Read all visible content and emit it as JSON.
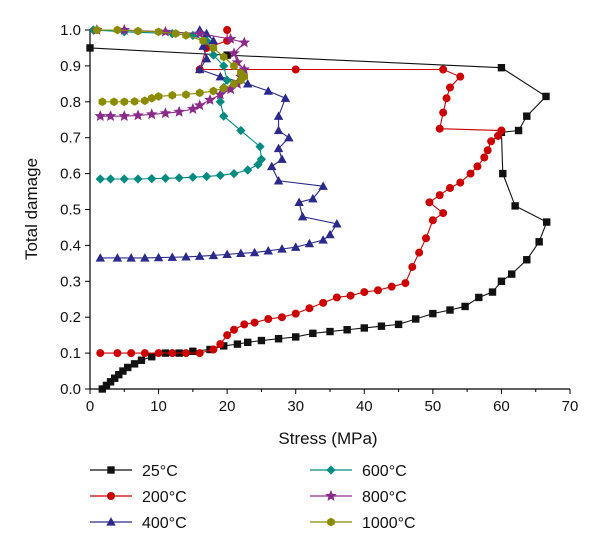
{
  "chart_data": {
    "type": "line",
    "xlabel": "Stress (MPa)",
    "ylabel": "Total damage",
    "xlim": [
      0,
      70
    ],
    "ylim": [
      0,
      1.0
    ],
    "x_ticks": [
      "0",
      "10",
      "20",
      "30",
      "40",
      "50",
      "60",
      "70"
    ],
    "y_ticks": [
      "0.0",
      "0.1",
      "0.2",
      "0.3",
      "0.4",
      "0.5",
      "0.6",
      "0.7",
      "0.8",
      "0.9",
      "1.0"
    ],
    "grid": false,
    "legend_position": "bottom",
    "series": [
      {
        "name": "25°C",
        "color": "#111111",
        "marker": "square",
        "points": [
          [
            1.8,
            0.0
          ],
          [
            2.4,
            0.01
          ],
          [
            3.0,
            0.02
          ],
          [
            3.6,
            0.03
          ],
          [
            4.2,
            0.04
          ],
          [
            4.8,
            0.05
          ],
          [
            5.5,
            0.06
          ],
          [
            6.5,
            0.07
          ],
          [
            7.5,
            0.08
          ],
          [
            9.0,
            0.09
          ],
          [
            11.0,
            0.1
          ],
          [
            13.0,
            0.1
          ],
          [
            15.0,
            0.105
          ],
          [
            17.5,
            0.11
          ],
          [
            19.5,
            0.12
          ],
          [
            21.5,
            0.125
          ],
          [
            23.0,
            0.13
          ],
          [
            25.0,
            0.135
          ],
          [
            27.5,
            0.14
          ],
          [
            30.0,
            0.145
          ],
          [
            32.5,
            0.155
          ],
          [
            35.0,
            0.16
          ],
          [
            37.5,
            0.165
          ],
          [
            40.0,
            0.17
          ],
          [
            42.5,
            0.175
          ],
          [
            45.0,
            0.18
          ],
          [
            47.5,
            0.195
          ],
          [
            50.0,
            0.21
          ],
          [
            52.5,
            0.22
          ],
          [
            54.7,
            0.23
          ],
          [
            56.7,
            0.255
          ],
          [
            58.7,
            0.27
          ],
          [
            60.0,
            0.3
          ],
          [
            61.5,
            0.32
          ],
          [
            63.7,
            0.36
          ],
          [
            65.5,
            0.41
          ],
          [
            66.6,
            0.465
          ],
          [
            62.0,
            0.51
          ],
          [
            60.2,
            0.6
          ],
          [
            60.0,
            0.715
          ],
          [
            62.5,
            0.72
          ],
          [
            63.7,
            0.76
          ],
          [
            66.5,
            0.815
          ],
          [
            60.0,
            0.895
          ],
          [
            20.0,
            0.93
          ],
          [
            0.0,
            0.95
          ]
        ]
      },
      {
        "name": "200°C",
        "color": "#cc0000",
        "marker": "circle",
        "points": [
          [
            1.5,
            0.1
          ],
          [
            4.0,
            0.1
          ],
          [
            6.0,
            0.1
          ],
          [
            8.0,
            0.1
          ],
          [
            10.0,
            0.1
          ],
          [
            12.0,
            0.1
          ],
          [
            14.0,
            0.1
          ],
          [
            16.0,
            0.1
          ],
          [
            18.0,
            0.11
          ],
          [
            19.0,
            0.125
          ],
          [
            20.0,
            0.15
          ],
          [
            21.0,
            0.165
          ],
          [
            22.5,
            0.18
          ],
          [
            24.0,
            0.185
          ],
          [
            26.0,
            0.195
          ],
          [
            28.0,
            0.2
          ],
          [
            30.0,
            0.21
          ],
          [
            32.0,
            0.225
          ],
          [
            34.0,
            0.24
          ],
          [
            36.0,
            0.255
          ],
          [
            38.0,
            0.26
          ],
          [
            40.0,
            0.27
          ],
          [
            42.0,
            0.275
          ],
          [
            44.0,
            0.285
          ],
          [
            46.0,
            0.295
          ],
          [
            47.0,
            0.34
          ],
          [
            48.0,
            0.38
          ],
          [
            49.0,
            0.42
          ],
          [
            50.0,
            0.47
          ],
          [
            51.5,
            0.49
          ],
          [
            49.5,
            0.52
          ],
          [
            51.0,
            0.54
          ],
          [
            52.5,
            0.56
          ],
          [
            54.0,
            0.575
          ],
          [
            55.5,
            0.6
          ],
          [
            56.5,
            0.62
          ],
          [
            57.5,
            0.645
          ],
          [
            58.0,
            0.665
          ],
          [
            58.5,
            0.69
          ],
          [
            59.5,
            0.705
          ],
          [
            60.0,
            0.72
          ],
          [
            51.0,
            0.725
          ],
          [
            51.5,
            0.77
          ],
          [
            52.0,
            0.81
          ],
          [
            52.5,
            0.84
          ],
          [
            54.0,
            0.87
          ],
          [
            51.5,
            0.89
          ],
          [
            30.0,
            0.89
          ],
          [
            16.0,
            0.89
          ],
          [
            17.0,
            0.95
          ],
          [
            20.0,
            0.97
          ],
          [
            20.0,
            1.0
          ]
        ]
      },
      {
        "name": "400°C",
        "color": "#2a2a8c",
        "marker": "triangle",
        "points": [
          [
            1.5,
            0.365
          ],
          [
            4.0,
            0.365
          ],
          [
            6.0,
            0.365
          ],
          [
            8.0,
            0.365
          ],
          [
            10.0,
            0.366
          ],
          [
            12.0,
            0.367
          ],
          [
            14.0,
            0.368
          ],
          [
            16.0,
            0.37
          ],
          [
            18.0,
            0.372
          ],
          [
            20.0,
            0.375
          ],
          [
            22.0,
            0.378
          ],
          [
            24.0,
            0.38
          ],
          [
            26.0,
            0.385
          ],
          [
            28.0,
            0.39
          ],
          [
            30.0,
            0.395
          ],
          [
            32.0,
            0.405
          ],
          [
            34.0,
            0.415
          ],
          [
            35.0,
            0.43
          ],
          [
            36.0,
            0.46
          ],
          [
            31.0,
            0.48
          ],
          [
            30.5,
            0.52
          ],
          [
            32.5,
            0.53
          ],
          [
            34.0,
            0.565
          ],
          [
            27.5,
            0.58
          ],
          [
            26.5,
            0.62
          ],
          [
            28.0,
            0.64
          ],
          [
            27.5,
            0.67
          ],
          [
            29.0,
            0.7
          ],
          [
            27.5,
            0.72
          ],
          [
            27.5,
            0.76
          ],
          [
            28.5,
            0.81
          ],
          [
            26.0,
            0.83
          ],
          [
            23.0,
            0.85
          ],
          [
            19.0,
            0.87
          ],
          [
            16.0,
            0.89
          ],
          [
            17.0,
            0.92
          ],
          [
            16.5,
            0.955
          ],
          [
            18.0,
            0.97
          ],
          [
            17.0,
            0.99
          ],
          [
            16.0,
            1.0
          ]
        ]
      },
      {
        "name": "600°C",
        "color": "#008b80",
        "marker": "diamond",
        "points": [
          [
            1.5,
            0.585
          ],
          [
            3.0,
            0.585
          ],
          [
            5.0,
            0.585
          ],
          [
            7.0,
            0.585
          ],
          [
            9.0,
            0.586
          ],
          [
            11.0,
            0.587
          ],
          [
            13.0,
            0.588
          ],
          [
            15.0,
            0.59
          ],
          [
            17.0,
            0.592
          ],
          [
            19.0,
            0.595
          ],
          [
            21.0,
            0.6
          ],
          [
            23.0,
            0.61
          ],
          [
            24.5,
            0.625
          ],
          [
            25.0,
            0.64
          ],
          [
            24.8,
            0.675
          ],
          [
            22.0,
            0.72
          ],
          [
            19.5,
            0.76
          ],
          [
            19.0,
            0.8
          ],
          [
            19.5,
            0.84
          ],
          [
            20.0,
            0.86
          ],
          [
            19.5,
            0.9
          ],
          [
            18.0,
            0.93
          ],
          [
            17.0,
            0.97
          ],
          [
            15.0,
            0.985
          ],
          [
            12.0,
            0.99
          ],
          [
            5.0,
            0.995
          ],
          [
            0.5,
            1.0
          ]
        ]
      },
      {
        "name": "800°C",
        "color": "#8b2a8b",
        "marker": "star",
        "points": [
          [
            1.5,
            0.76
          ],
          [
            3.0,
            0.76
          ],
          [
            5.0,
            0.76
          ],
          [
            7.0,
            0.762
          ],
          [
            9.0,
            0.765
          ],
          [
            11.0,
            0.768
          ],
          [
            13.0,
            0.772
          ],
          [
            15.0,
            0.78
          ],
          [
            16.0,
            0.79
          ],
          [
            17.5,
            0.805
          ],
          [
            19.0,
            0.82
          ],
          [
            20.5,
            0.835
          ],
          [
            21.5,
            0.85
          ],
          [
            22.0,
            0.87
          ],
          [
            22.5,
            0.89
          ],
          [
            21.5,
            0.91
          ],
          [
            21.0,
            0.935
          ],
          [
            22.5,
            0.965
          ],
          [
            20.5,
            0.975
          ],
          [
            16.0,
            0.99
          ],
          [
            11.0,
            0.995
          ],
          [
            5.0,
            1.0
          ],
          [
            1.0,
            1.0
          ]
        ]
      },
      {
        "name": "1000°C",
        "color": "#8b8b00",
        "marker": "hexagon",
        "points": [
          [
            1.8,
            0.8
          ],
          [
            3.5,
            0.8
          ],
          [
            5.0,
            0.8
          ],
          [
            6.5,
            0.801
          ],
          [
            8.0,
            0.803
          ],
          [
            9.0,
            0.81
          ],
          [
            10.0,
            0.815
          ],
          [
            12.0,
            0.818
          ],
          [
            14.0,
            0.82
          ],
          [
            16.0,
            0.825
          ],
          [
            18.0,
            0.83
          ],
          [
            19.5,
            0.838
          ],
          [
            21.0,
            0.85
          ],
          [
            22.0,
            0.86
          ],
          [
            22.5,
            0.87
          ],
          [
            22.0,
            0.88
          ],
          [
            21.0,
            0.9
          ],
          [
            19.5,
            0.925
          ],
          [
            18.0,
            0.95
          ],
          [
            16.5,
            0.97
          ],
          [
            14.0,
            0.985
          ],
          [
            12.5,
            0.99
          ],
          [
            10.0,
            0.995
          ],
          [
            7.0,
            0.997
          ],
          [
            4.0,
            1.0
          ],
          [
            1.0,
            1.0
          ]
        ]
      }
    ]
  }
}
